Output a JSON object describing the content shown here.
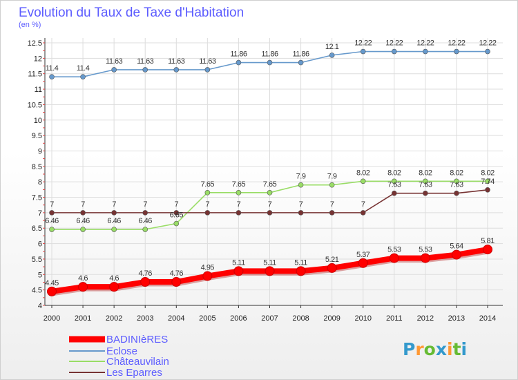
{
  "chart_data": {
    "type": "line",
    "title": "Evolution du Taux de Taxe d'Habitation",
    "subtitle": "(en %)",
    "x": [
      "2000",
      "2001",
      "2002",
      "2003",
      "2004",
      "2005",
      "2006",
      "2007",
      "2008",
      "2009",
      "2010",
      "2011",
      "2012",
      "2013",
      "2014"
    ],
    "ylim": [
      4,
      12.5
    ],
    "yticks": [
      4,
      4.5,
      5,
      5.5,
      6,
      6.5,
      7,
      7.5,
      8,
      8.5,
      9,
      9.5,
      10,
      10.5,
      11,
      11.5,
      12,
      12.5
    ],
    "ytick_labels": [
      "4",
      "4.5",
      "5",
      "5.5",
      "6",
      "6.5",
      "7",
      "7.5",
      "8",
      "8.5",
      "9",
      "9.5",
      "10",
      "10.5",
      "11",
      "11.5",
      "12",
      "12.5"
    ],
    "grid": true,
    "legend_position": "bottom-left",
    "series": [
      {
        "name": "BADINIèRES",
        "color": "#ff0000",
        "values": [
          4.45,
          4.6,
          4.6,
          4.76,
          4.76,
          4.95,
          5.11,
          5.11,
          5.11,
          5.21,
          5.37,
          5.53,
          5.53,
          5.64,
          5.81
        ],
        "labels": [
          "4.45",
          "4.6",
          "4.6",
          "4.76",
          "4.76",
          "4.95",
          "5.11",
          "5.11",
          "5.11",
          "5.21",
          "5.37",
          "5.53",
          "5.53",
          "5.64",
          "5.81"
        ]
      },
      {
        "name": "Eclose",
        "color": "#6699cc",
        "values": [
          11.4,
          11.4,
          11.63,
          11.63,
          11.63,
          11.63,
          11.86,
          11.86,
          11.86,
          12.1,
          12.22,
          12.22,
          12.22,
          12.22,
          12.22
        ],
        "labels": [
          "11.4",
          "11.4",
          "11.63",
          "11.63",
          "11.63",
          "11.63",
          "11.86",
          "11.86",
          "11.86",
          "12.1",
          "12.22",
          "12.22",
          "12.22",
          "12.22",
          "12.22"
        ]
      },
      {
        "name": "Châteauvilain",
        "color": "#99dd66",
        "values": [
          6.46,
          6.46,
          6.46,
          6.46,
          6.65,
          7.65,
          7.65,
          7.65,
          7.9,
          7.9,
          8.02,
          8.02,
          8.02,
          8.02,
          8.02
        ],
        "labels": [
          "6.46",
          "6.46",
          "6.46",
          "6.46",
          "6.65",
          "7.65",
          "7.65",
          "7.65",
          "7.9",
          "7.9",
          "8.02",
          "8.02",
          "8.02",
          "8.02",
          "8.02"
        ]
      },
      {
        "name": "Les Eparres",
        "color": "#773333",
        "values": [
          7,
          7,
          7,
          7,
          7,
          7,
          7,
          7,
          7,
          7,
          7,
          7.63,
          7.63,
          7.63,
          7.74
        ],
        "labels": [
          "7",
          "7",
          "7",
          "7",
          "7",
          "7",
          "7",
          "7",
          "7",
          "7",
          "7",
          "7.63",
          "7.63",
          "7.63",
          "7.74"
        ]
      }
    ]
  },
  "logo": {
    "text": "Proxiti",
    "letter_colors": [
      "#3399cc",
      "#ff9933",
      "#66bb33",
      "#3399cc",
      "#ff9933",
      "#66bb33",
      "#3399cc"
    ]
  }
}
